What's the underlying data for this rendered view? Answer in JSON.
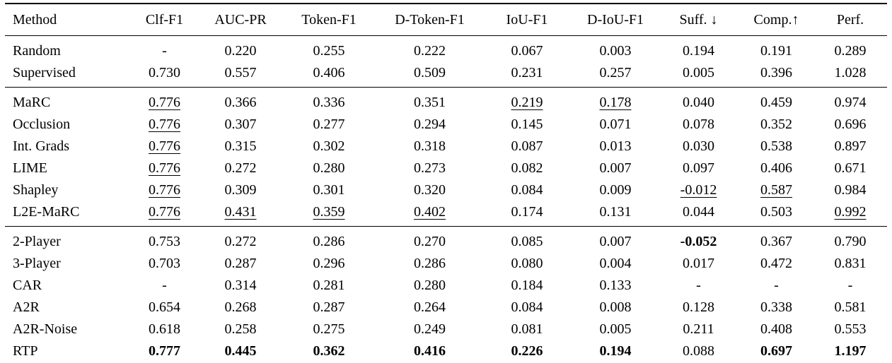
{
  "colors": {
    "text": "#000000",
    "background": "#ffffff",
    "rule": "#000000"
  },
  "table": {
    "headers": [
      "Method",
      "Clf-F1",
      "AUC-PR",
      "Token-F1",
      "D-Token-F1",
      "IoU-F1",
      "D-IoU-F1",
      "Suff. ↓",
      "Comp.↑",
      "Perf."
    ],
    "groups": [
      {
        "rows": [
          {
            "method": "Random",
            "cells": [
              {
                "text": "-",
                "style": "plain"
              },
              {
                "text": "0.220",
                "style": "plain"
              },
              {
                "text": "0.255",
                "style": "plain"
              },
              {
                "text": "0.222",
                "style": "plain"
              },
              {
                "text": "0.067",
                "style": "plain"
              },
              {
                "text": "0.003",
                "style": "plain"
              },
              {
                "text": "0.194",
                "style": "plain"
              },
              {
                "text": "0.191",
                "style": "plain"
              },
              {
                "text": "0.289",
                "style": "plain"
              }
            ]
          },
          {
            "method": "Supervised",
            "cells": [
              {
                "text": "0.730",
                "style": "plain"
              },
              {
                "text": "0.557",
                "style": "plain"
              },
              {
                "text": "0.406",
                "style": "plain"
              },
              {
                "text": "0.509",
                "style": "plain"
              },
              {
                "text": "0.231",
                "style": "plain"
              },
              {
                "text": "0.257",
                "style": "plain"
              },
              {
                "text": "0.005",
                "style": "plain"
              },
              {
                "text": "0.396",
                "style": "plain"
              },
              {
                "text": "1.028",
                "style": "plain"
              }
            ]
          }
        ]
      },
      {
        "rows": [
          {
            "method": "MaRC",
            "cells": [
              {
                "text": "0.776",
                "style": "underline"
              },
              {
                "text": "0.366",
                "style": "plain"
              },
              {
                "text": "0.336",
                "style": "plain"
              },
              {
                "text": "0.351",
                "style": "plain"
              },
              {
                "text": "0.219",
                "style": "underline"
              },
              {
                "text": "0.178",
                "style": "underline"
              },
              {
                "text": "0.040",
                "style": "plain"
              },
              {
                "text": "0.459",
                "style": "plain"
              },
              {
                "text": "0.974",
                "style": "plain"
              }
            ]
          },
          {
            "method": "Occlusion",
            "cells": [
              {
                "text": "0.776",
                "style": "underline"
              },
              {
                "text": "0.307",
                "style": "plain"
              },
              {
                "text": "0.277",
                "style": "plain"
              },
              {
                "text": "0.294",
                "style": "plain"
              },
              {
                "text": "0.145",
                "style": "plain"
              },
              {
                "text": "0.071",
                "style": "plain"
              },
              {
                "text": "0.078",
                "style": "plain"
              },
              {
                "text": "0.352",
                "style": "plain"
              },
              {
                "text": "0.696",
                "style": "plain"
              }
            ]
          },
          {
            "method": "Int. Grads",
            "cells": [
              {
                "text": "0.776",
                "style": "underline"
              },
              {
                "text": "0.315",
                "style": "plain"
              },
              {
                "text": "0.302",
                "style": "plain"
              },
              {
                "text": "0.318",
                "style": "plain"
              },
              {
                "text": "0.087",
                "style": "plain"
              },
              {
                "text": "0.013",
                "style": "plain"
              },
              {
                "text": "0.030",
                "style": "plain"
              },
              {
                "text": "0.538",
                "style": "plain"
              },
              {
                "text": "0.897",
                "style": "plain"
              }
            ]
          },
          {
            "method": "LIME",
            "cells": [
              {
                "text": "0.776",
                "style": "underline"
              },
              {
                "text": "0.272",
                "style": "plain"
              },
              {
                "text": "0.280",
                "style": "plain"
              },
              {
                "text": "0.273",
                "style": "plain"
              },
              {
                "text": "0.082",
                "style": "plain"
              },
              {
                "text": "0.007",
                "style": "plain"
              },
              {
                "text": "0.097",
                "style": "plain"
              },
              {
                "text": "0.406",
                "style": "plain"
              },
              {
                "text": "0.671",
                "style": "plain"
              }
            ]
          },
          {
            "method": "Shapley",
            "cells": [
              {
                "text": "0.776",
                "style": "underline"
              },
              {
                "text": "0.309",
                "style": "plain"
              },
              {
                "text": "0.301",
                "style": "plain"
              },
              {
                "text": "0.320",
                "style": "plain"
              },
              {
                "text": "0.084",
                "style": "plain"
              },
              {
                "text": "0.009",
                "style": "plain"
              },
              {
                "text": "-0.012",
                "style": "underline"
              },
              {
                "text": "0.587",
                "style": "underline"
              },
              {
                "text": "0.984",
                "style": "plain"
              }
            ]
          },
          {
            "method": "L2E-MaRC",
            "cells": [
              {
                "text": "0.776",
                "style": "underline"
              },
              {
                "text": "0.431",
                "style": "underline"
              },
              {
                "text": "0.359",
                "style": "underline"
              },
              {
                "text": "0.402",
                "style": "underline"
              },
              {
                "text": "0.174",
                "style": "plain"
              },
              {
                "text": "0.131",
                "style": "plain"
              },
              {
                "text": "0.044",
                "style": "plain"
              },
              {
                "text": "0.503",
                "style": "plain"
              },
              {
                "text": "0.992",
                "style": "underline"
              }
            ]
          }
        ]
      },
      {
        "rows": [
          {
            "method": "2-Player",
            "cells": [
              {
                "text": "0.753",
                "style": "plain"
              },
              {
                "text": "0.272",
                "style": "plain"
              },
              {
                "text": "0.286",
                "style": "plain"
              },
              {
                "text": "0.270",
                "style": "plain"
              },
              {
                "text": "0.085",
                "style": "plain"
              },
              {
                "text": "0.007",
                "style": "plain"
              },
              {
                "text": "-0.052",
                "style": "bold"
              },
              {
                "text": "0.367",
                "style": "plain"
              },
              {
                "text": "0.790",
                "style": "plain"
              }
            ]
          },
          {
            "method": "3-Player",
            "cells": [
              {
                "text": "0.703",
                "style": "plain"
              },
              {
                "text": "0.287",
                "style": "plain"
              },
              {
                "text": "0.296",
                "style": "plain"
              },
              {
                "text": "0.286",
                "style": "plain"
              },
              {
                "text": "0.080",
                "style": "plain"
              },
              {
                "text": "0.004",
                "style": "plain"
              },
              {
                "text": "0.017",
                "style": "plain"
              },
              {
                "text": "0.472",
                "style": "plain"
              },
              {
                "text": "0.831",
                "style": "plain"
              }
            ]
          },
          {
            "method": "CAR",
            "cells": [
              {
                "text": "-",
                "style": "plain"
              },
              {
                "text": "0.314",
                "style": "plain"
              },
              {
                "text": "0.281",
                "style": "plain"
              },
              {
                "text": "0.280",
                "style": "plain"
              },
              {
                "text": "0.184",
                "style": "plain"
              },
              {
                "text": "0.133",
                "style": "plain"
              },
              {
                "text": "-",
                "style": "plain"
              },
              {
                "text": "-",
                "style": "plain"
              },
              {
                "text": "-",
                "style": "plain"
              }
            ]
          },
          {
            "method": "A2R",
            "cells": [
              {
                "text": "0.654",
                "style": "plain"
              },
              {
                "text": "0.268",
                "style": "plain"
              },
              {
                "text": "0.287",
                "style": "plain"
              },
              {
                "text": "0.264",
                "style": "plain"
              },
              {
                "text": "0.084",
                "style": "plain"
              },
              {
                "text": "0.008",
                "style": "plain"
              },
              {
                "text": "0.128",
                "style": "plain"
              },
              {
                "text": "0.338",
                "style": "plain"
              },
              {
                "text": "0.581",
                "style": "plain"
              }
            ]
          },
          {
            "method": "A2R-Noise",
            "cells": [
              {
                "text": "0.618",
                "style": "plain"
              },
              {
                "text": "0.258",
                "style": "plain"
              },
              {
                "text": "0.275",
                "style": "plain"
              },
              {
                "text": "0.249",
                "style": "plain"
              },
              {
                "text": "0.081",
                "style": "plain"
              },
              {
                "text": "0.005",
                "style": "plain"
              },
              {
                "text": "0.211",
                "style": "plain"
              },
              {
                "text": "0.408",
                "style": "plain"
              },
              {
                "text": "0.553",
                "style": "plain"
              }
            ]
          },
          {
            "method": "RTP",
            "cells": [
              {
                "text": "0.777",
                "style": "bold"
              },
              {
                "text": "0.445",
                "style": "bold"
              },
              {
                "text": "0.362",
                "style": "bold"
              },
              {
                "text": "0.416",
                "style": "bold"
              },
              {
                "text": "0.226",
                "style": "bold"
              },
              {
                "text": "0.194",
                "style": "bold"
              },
              {
                "text": "0.088",
                "style": "plain"
              },
              {
                "text": "0.697",
                "style": "bold"
              },
              {
                "text": "1.197",
                "style": "bold"
              }
            ]
          }
        ]
      }
    ]
  }
}
